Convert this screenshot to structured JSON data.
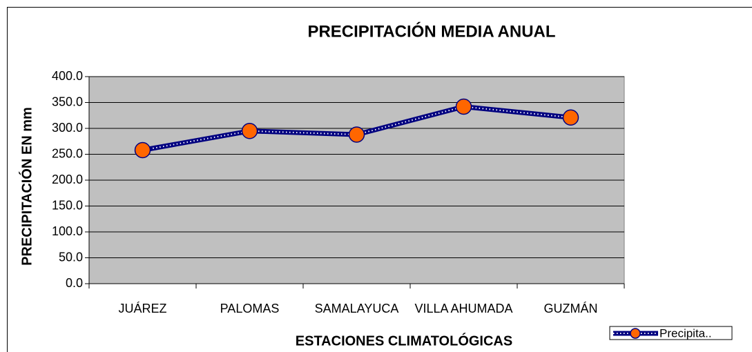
{
  "chart_data": {
    "type": "line",
    "title": "PRECIPITACIÓN MEDIA ANUAL",
    "x_label": "ESTACIONES CLIMATOLÓGICAS",
    "y_label": "PRECIPITACIÓN EN mm",
    "categories": [
      "JUÁREZ",
      "PALOMAS",
      "SAMALAYUCA",
      "VILLA AHUMADA",
      "GUZMÁN"
    ],
    "series": [
      {
        "name": "Precipita..",
        "color": "#000080",
        "marker_color": "#ff6600",
        "values": [
          258,
          295,
          288,
          342,
          321
        ]
      }
    ],
    "ylim": [
      0,
      400
    ],
    "yticks": [
      {
        "value": 0,
        "label": "0.0"
      },
      {
        "value": 50,
        "label": "50.0"
      },
      {
        "value": 100,
        "label": "100.0"
      },
      {
        "value": 150,
        "label": "150.0"
      },
      {
        "value": 200,
        "label": "200.0"
      },
      {
        "value": 250,
        "label": "250.0"
      },
      {
        "value": 300,
        "label": "300.0"
      },
      {
        "value": 350,
        "label": "350.0"
      },
      {
        "value": 400,
        "label": "400.0"
      }
    ],
    "grid": true,
    "plot_background": "#c0c0c0",
    "legend": "bottom-right"
  }
}
